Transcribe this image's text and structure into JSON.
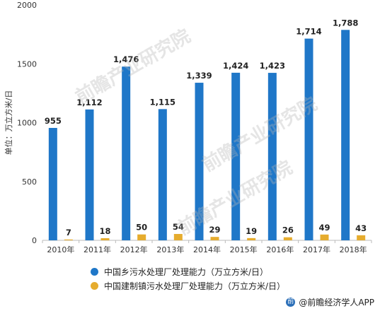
{
  "chart_data": {
    "type": "bar",
    "categories": [
      "2010年",
      "2011年",
      "2012年",
      "2013年",
      "2014年",
      "2015年",
      "2016年",
      "2017年",
      "2018年"
    ],
    "series": [
      {
        "name": "中国乡污水处理厂处理能力（万立方米/日）",
        "values": [
          955,
          1112,
          1476,
          1115,
          1339,
          1424,
          1423,
          1714,
          1788
        ],
        "color": "#1f77c8"
      },
      {
        "name": "中国建制镇污水处理厂处理能力（万立方米/日）",
        "values": [
          7,
          18,
          50,
          54,
          29,
          19,
          26,
          49,
          43
        ],
        "color": "#e6ac2e"
      }
    ],
    "data_labels": [
      [
        "955",
        "1,112",
        "1,476",
        "1,115",
        "1,339",
        "1,424",
        "1,423",
        "1,714",
        "1,788"
      ],
      [
        "7",
        "18",
        "50",
        "54",
        "29",
        "19",
        "26",
        "49",
        "43"
      ]
    ],
    "ylabel": "单位：万立方米/日",
    "ylim": [
      0,
      2000
    ],
    "yticks": [
      "0",
      "500",
      "1000",
      "1500",
      "2000"
    ],
    "legend": "bottom",
    "grid": false
  },
  "credit": "@前瞻经济学人APP",
  "watermark": "前瞻产业研究院"
}
